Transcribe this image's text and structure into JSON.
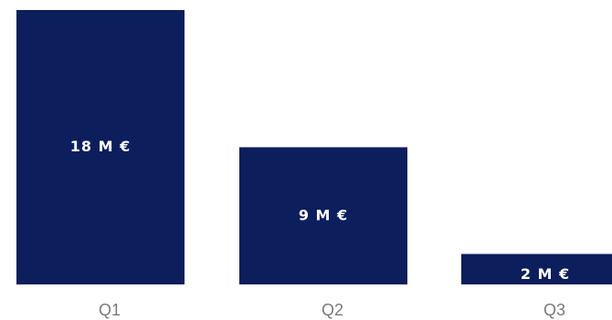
{
  "chart_data": {
    "type": "bar",
    "categories": [
      "Q1",
      "Q2",
      "Q3"
    ],
    "values": [
      18,
      9,
      2
    ],
    "data_labels": [
      "18 M €",
      "9 M €",
      "2 M €"
    ],
    "unit": "M €",
    "ylim": [
      0,
      18
    ],
    "grid": false,
    "legend": "none",
    "colors": {
      "bar": "#0c1e5b",
      "data_label": "#ffffff",
      "tick_label": "#7a7a7a",
      "background": "#ffffff"
    }
  }
}
